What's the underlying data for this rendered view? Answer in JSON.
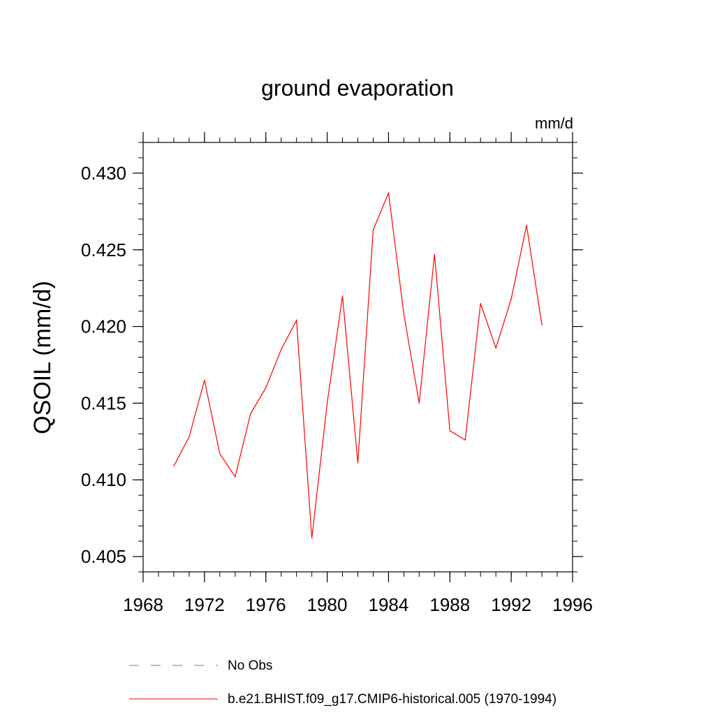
{
  "chart_data": {
    "type": "line",
    "title": "ground evaporation",
    "units": "mm/d",
    "ylabel": "QSOIL  (mm/d)",
    "xlabel": "",
    "xlim": [
      1968,
      1996
    ],
    "ylim": [
      0.404,
      0.432
    ],
    "xticks": [
      1968,
      1972,
      1976,
      1980,
      1984,
      1988,
      1992,
      1996
    ],
    "xtick_labels": [
      "1968",
      "1972",
      "1976",
      "1980",
      "1984",
      "1988",
      "1992",
      "1996"
    ],
    "yticks": [
      0.405,
      0.41,
      0.415,
      0.42,
      0.425,
      0.43
    ],
    "ytick_labels": [
      "0.405",
      "0.410",
      "0.415",
      "0.420",
      "0.425",
      "0.430"
    ],
    "grid": false,
    "series": [
      {
        "name": "b.e21.BHIST.f09_g17.CMIP6-historical.005 (1970-1994)",
        "color": "#ff0000",
        "dash": "solid",
        "x": [
          1970,
          1971,
          1972,
          1973,
          1974,
          1975,
          1976,
          1977,
          1978,
          1979,
          1980,
          1981,
          1982,
          1983,
          1984,
          1985,
          1986,
          1987,
          1988,
          1989,
          1990,
          1991,
          1992,
          1993,
          1994
        ],
        "values": [
          0.4109,
          0.4128,
          0.4165,
          0.4117,
          0.4102,
          0.4143,
          0.416,
          0.4185,
          0.4204,
          0.4062,
          0.415,
          0.422,
          0.4111,
          0.4263,
          0.4287,
          0.4208,
          0.415,
          0.4247,
          0.4132,
          0.4126,
          0.4215,
          0.4186,
          0.4218,
          0.4266,
          0.4201
        ]
      }
    ],
    "legend": [
      {
        "label": "No Obs",
        "color": "#7b6fd6",
        "dash": "dashed"
      },
      {
        "label": "b.e21.BHIST.f09_g17.CMIP6-historical.005 (1970-1994)",
        "color": "#ff0000",
        "dash": "solid"
      }
    ],
    "legend_position": "bottom"
  }
}
